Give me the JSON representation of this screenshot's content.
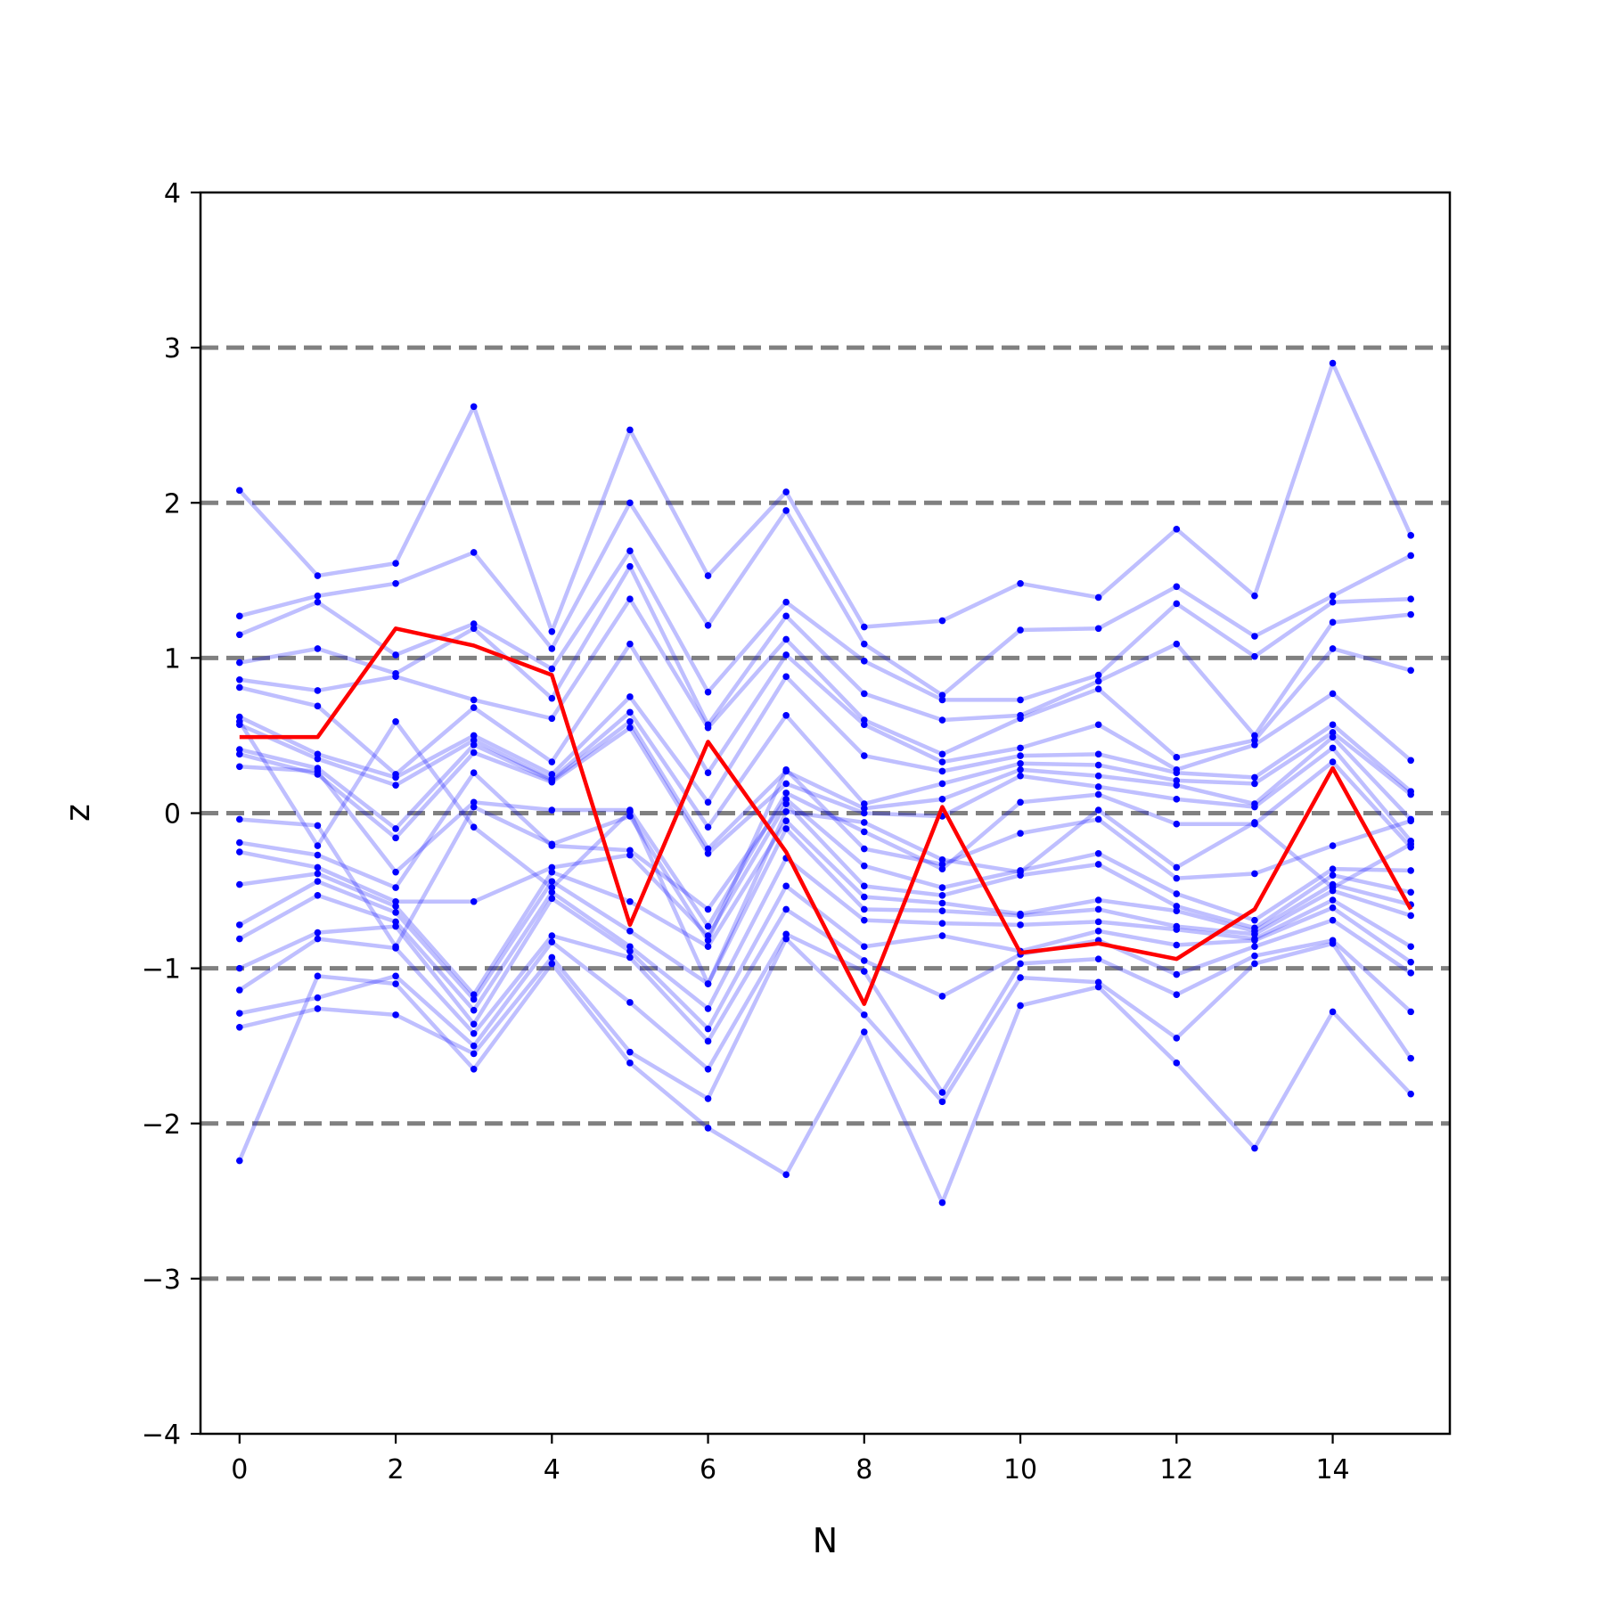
{
  "chart_data": {
    "type": "line",
    "title": "",
    "xlabel": "N",
    "ylabel": "z",
    "xlim": [
      -0.5,
      15.5
    ],
    "ylim": [
      -4,
      4
    ],
    "x": [
      0,
      1,
      2,
      3,
      4,
      5,
      6,
      7,
      8,
      9,
      10,
      11,
      12,
      13,
      14,
      15
    ],
    "xticks": [
      "0",
      "2",
      "4",
      "6",
      "8",
      "10",
      "12",
      "14"
    ],
    "yticks": [
      "−4",
      "−3",
      "−2",
      "−1",
      "0",
      "1",
      "2",
      "3",
      "4"
    ],
    "reference_lines": [
      -3,
      -2,
      -1,
      0,
      1,
      2,
      3
    ],
    "colors": {
      "background_series": "#0000ff",
      "highlight_series": "#ff0000",
      "reference_lines": "#808080"
    },
    "highlight_series": {
      "values": [
        0.49,
        0.49,
        1.19,
        1.08,
        0.89,
        -0.72,
        0.46,
        -0.25,
        -1.23,
        0.04,
        -0.9,
        -0.84,
        -0.94,
        -0.62,
        0.29,
        -0.62
      ]
    },
    "series": [
      {
        "values": [
          2.08,
          1.53,
          1.61,
          2.62,
          1.17,
          2.47,
          1.53,
          2.07,
          1.2,
          1.24,
          1.48,
          1.39,
          1.83,
          1.4,
          2.9,
          1.79
        ]
      },
      {
        "values": [
          -2.24,
          -1.05,
          -1.1,
          -1.65,
          -0.97,
          -1.61,
          -2.03,
          -2.33,
          -1.41,
          -2.51,
          -1.24,
          -1.12,
          -1.61,
          -2.16,
          -1.28,
          -1.81
        ]
      },
      {
        "values": [
          1.27,
          1.4,
          1.48,
          1.68,
          1.06,
          2.0,
          1.21,
          1.95,
          1.09,
          0.76,
          1.18,
          1.19,
          1.46,
          1.14,
          1.4,
          1.66
        ]
      },
      {
        "values": [
          -1.38,
          -1.26,
          -1.3,
          -1.55,
          -0.93,
          -1.54,
          -1.84,
          -0.81,
          -1.3,
          -1.86,
          -1.06,
          -1.09,
          -1.45,
          -0.97,
          -0.84,
          -1.58
        ]
      },
      {
        "values": [
          1.15,
          1.36,
          1.02,
          1.22,
          0.93,
          1.69,
          0.78,
          1.36,
          0.98,
          0.73,
          0.73,
          0.89,
          1.35,
          1.01,
          1.36,
          1.38
        ]
      },
      {
        "values": [
          -1.29,
          -1.19,
          -1.05,
          -1.5,
          -0.83,
          -1.22,
          -1.65,
          -0.78,
          -1.02,
          -1.8,
          -0.97,
          -0.94,
          -1.17,
          -0.92,
          -0.82,
          -1.28
        ]
      },
      {
        "values": [
          0.97,
          1.06,
          0.9,
          1.19,
          0.74,
          1.59,
          0.57,
          1.27,
          0.77,
          0.6,
          0.63,
          0.85,
          1.09,
          0.5,
          1.23,
          1.28
        ]
      },
      {
        "values": [
          -1.14,
          -0.81,
          -0.87,
          -1.42,
          -0.79,
          -0.93,
          -1.47,
          -0.62,
          -0.95,
          -1.18,
          -0.91,
          -0.82,
          -1.04,
          -0.86,
          -0.69,
          -1.03
        ]
      },
      {
        "values": [
          0.86,
          0.79,
          0.88,
          0.73,
          0.61,
          1.38,
          0.55,
          1.12,
          0.6,
          0.38,
          0.61,
          0.8,
          0.36,
          0.47,
          1.06,
          0.92
        ]
      },
      {
        "values": [
          -1.0,
          -0.77,
          -0.73,
          -1.36,
          -0.55,
          -0.89,
          -1.39,
          -0.47,
          -0.86,
          -0.79,
          -0.89,
          -0.76,
          -0.85,
          -0.82,
          -0.61,
          -0.96
        ]
      },
      {
        "values": [
          0.81,
          0.69,
          0.25,
          0.68,
          0.33,
          1.09,
          0.26,
          1.02,
          0.57,
          0.33,
          0.42,
          0.57,
          0.28,
          0.44,
          0.77,
          0.34
        ]
      },
      {
        "values": [
          -0.81,
          -0.53,
          -0.7,
          -1.27,
          -0.51,
          -0.86,
          -1.26,
          -0.29,
          -0.69,
          -0.71,
          -0.72,
          -0.7,
          -0.75,
          -0.81,
          -0.56,
          -0.86
        ]
      },
      {
        "values": [
          0.62,
          0.38,
          0.23,
          0.5,
          0.25,
          0.75,
          0.07,
          0.88,
          0.37,
          0.27,
          0.37,
          0.38,
          0.26,
          0.23,
          0.57,
          0.14
        ]
      },
      {
        "values": [
          -0.72,
          -0.44,
          -0.64,
          -1.2,
          -0.44,
          -0.76,
          -1.1,
          -0.1,
          -0.62,
          -0.63,
          -0.66,
          -0.62,
          -0.73,
          -0.78,
          -0.5,
          -0.66
        ]
      },
      {
        "values": [
          0.57,
          0.35,
          0.18,
          0.47,
          0.22,
          0.65,
          -0.09,
          0.63,
          0.06,
          0.19,
          0.32,
          0.31,
          0.21,
          0.19,
          0.52,
          0.12
        ]
      },
      {
        "values": [
          -0.46,
          -0.39,
          -0.6,
          -1.17,
          -0.38,
          -0.57,
          -0.86,
          -0.05,
          -0.54,
          -0.58,
          -0.65,
          -0.56,
          -0.63,
          -0.76,
          -0.46,
          -0.59
        ]
      },
      {
        "values": [
          0.41,
          0.29,
          -0.1,
          0.44,
          0.21,
          0.59,
          -0.23,
          0.27,
          0.03,
          0.09,
          0.28,
          0.24,
          0.18,
          0.06,
          0.49,
          -0.04
        ]
      },
      {
        "values": [
          -0.25,
          -0.35,
          -0.57,
          -0.57,
          -0.35,
          -0.27,
          -0.79,
          0.06,
          -0.47,
          -0.53,
          -0.4,
          -0.33,
          -0.6,
          -0.74,
          -0.4,
          -0.51
        ]
      },
      {
        "values": [
          0.38,
          0.25,
          -0.16,
          0.39,
          0.2,
          0.55,
          -0.26,
          0.19,
          0.0,
          -0.02,
          0.24,
          0.17,
          0.09,
          0.04,
          0.42,
          -0.18
        ]
      },
      {
        "values": [
          -0.19,
          -0.27,
          -0.48,
          0.26,
          -0.21,
          -0.24,
          -0.62,
          0.09,
          -0.34,
          -0.48,
          -0.37,
          -0.26,
          -0.52,
          -0.69,
          -0.36,
          -0.37
        ]
      },
      {
        "values": [
          0.3,
          0.27,
          -0.38,
          0.07,
          0.02,
          0.02,
          -0.73,
          0.13,
          -0.12,
          -0.36,
          0.07,
          0.12,
          -0.07,
          -0.07,
          0.33,
          -0.22
        ]
      },
      {
        "values": [
          -0.04,
          -0.08,
          -0.86,
          0.04,
          -0.2,
          -0.02,
          -0.82,
          0.28,
          -0.23,
          -0.33,
          -0.13,
          -0.04,
          -0.42,
          -0.39,
          -0.21,
          -0.05
        ]
      },
      {
        "values": [
          0.59,
          -0.21,
          0.59,
          -0.09,
          -0.48,
          0.01,
          -1.1,
          0.01,
          -0.06,
          -0.3,
          -0.38,
          0.02,
          -0.35,
          -0.06,
          -0.48,
          -0.2
        ]
      }
    ]
  }
}
